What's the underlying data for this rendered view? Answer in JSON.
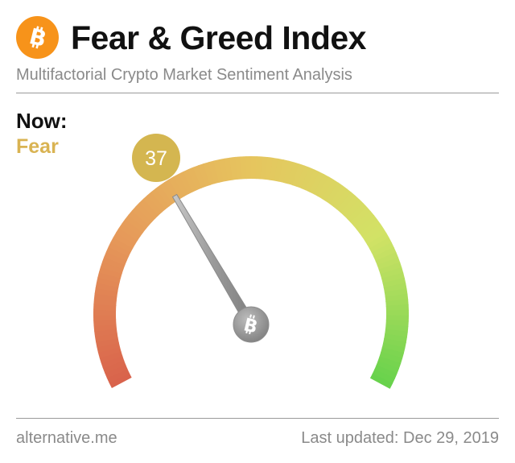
{
  "header": {
    "title": "Fear & Greed Index",
    "subtitle": "Multifactorial Crypto Market Sentiment Analysis",
    "logo_icon": "bitcoin-icon",
    "logo_color": "#f7931a"
  },
  "now": {
    "label": "Now:",
    "classification": "Fear",
    "classification_color": "#d9b352"
  },
  "gauge": {
    "value": 37,
    "value_display": "37",
    "min": 0,
    "max": 100,
    "badge_color": "#d4b650",
    "colors": [
      "#d9634c",
      "#e69a5a",
      "#e6c55e",
      "#d2e266",
      "#68d24c"
    ],
    "center_icon": "bitcoin-icon"
  },
  "footer": {
    "source": "alternative.me",
    "updated": "Last updated: Dec 29, 2019"
  }
}
